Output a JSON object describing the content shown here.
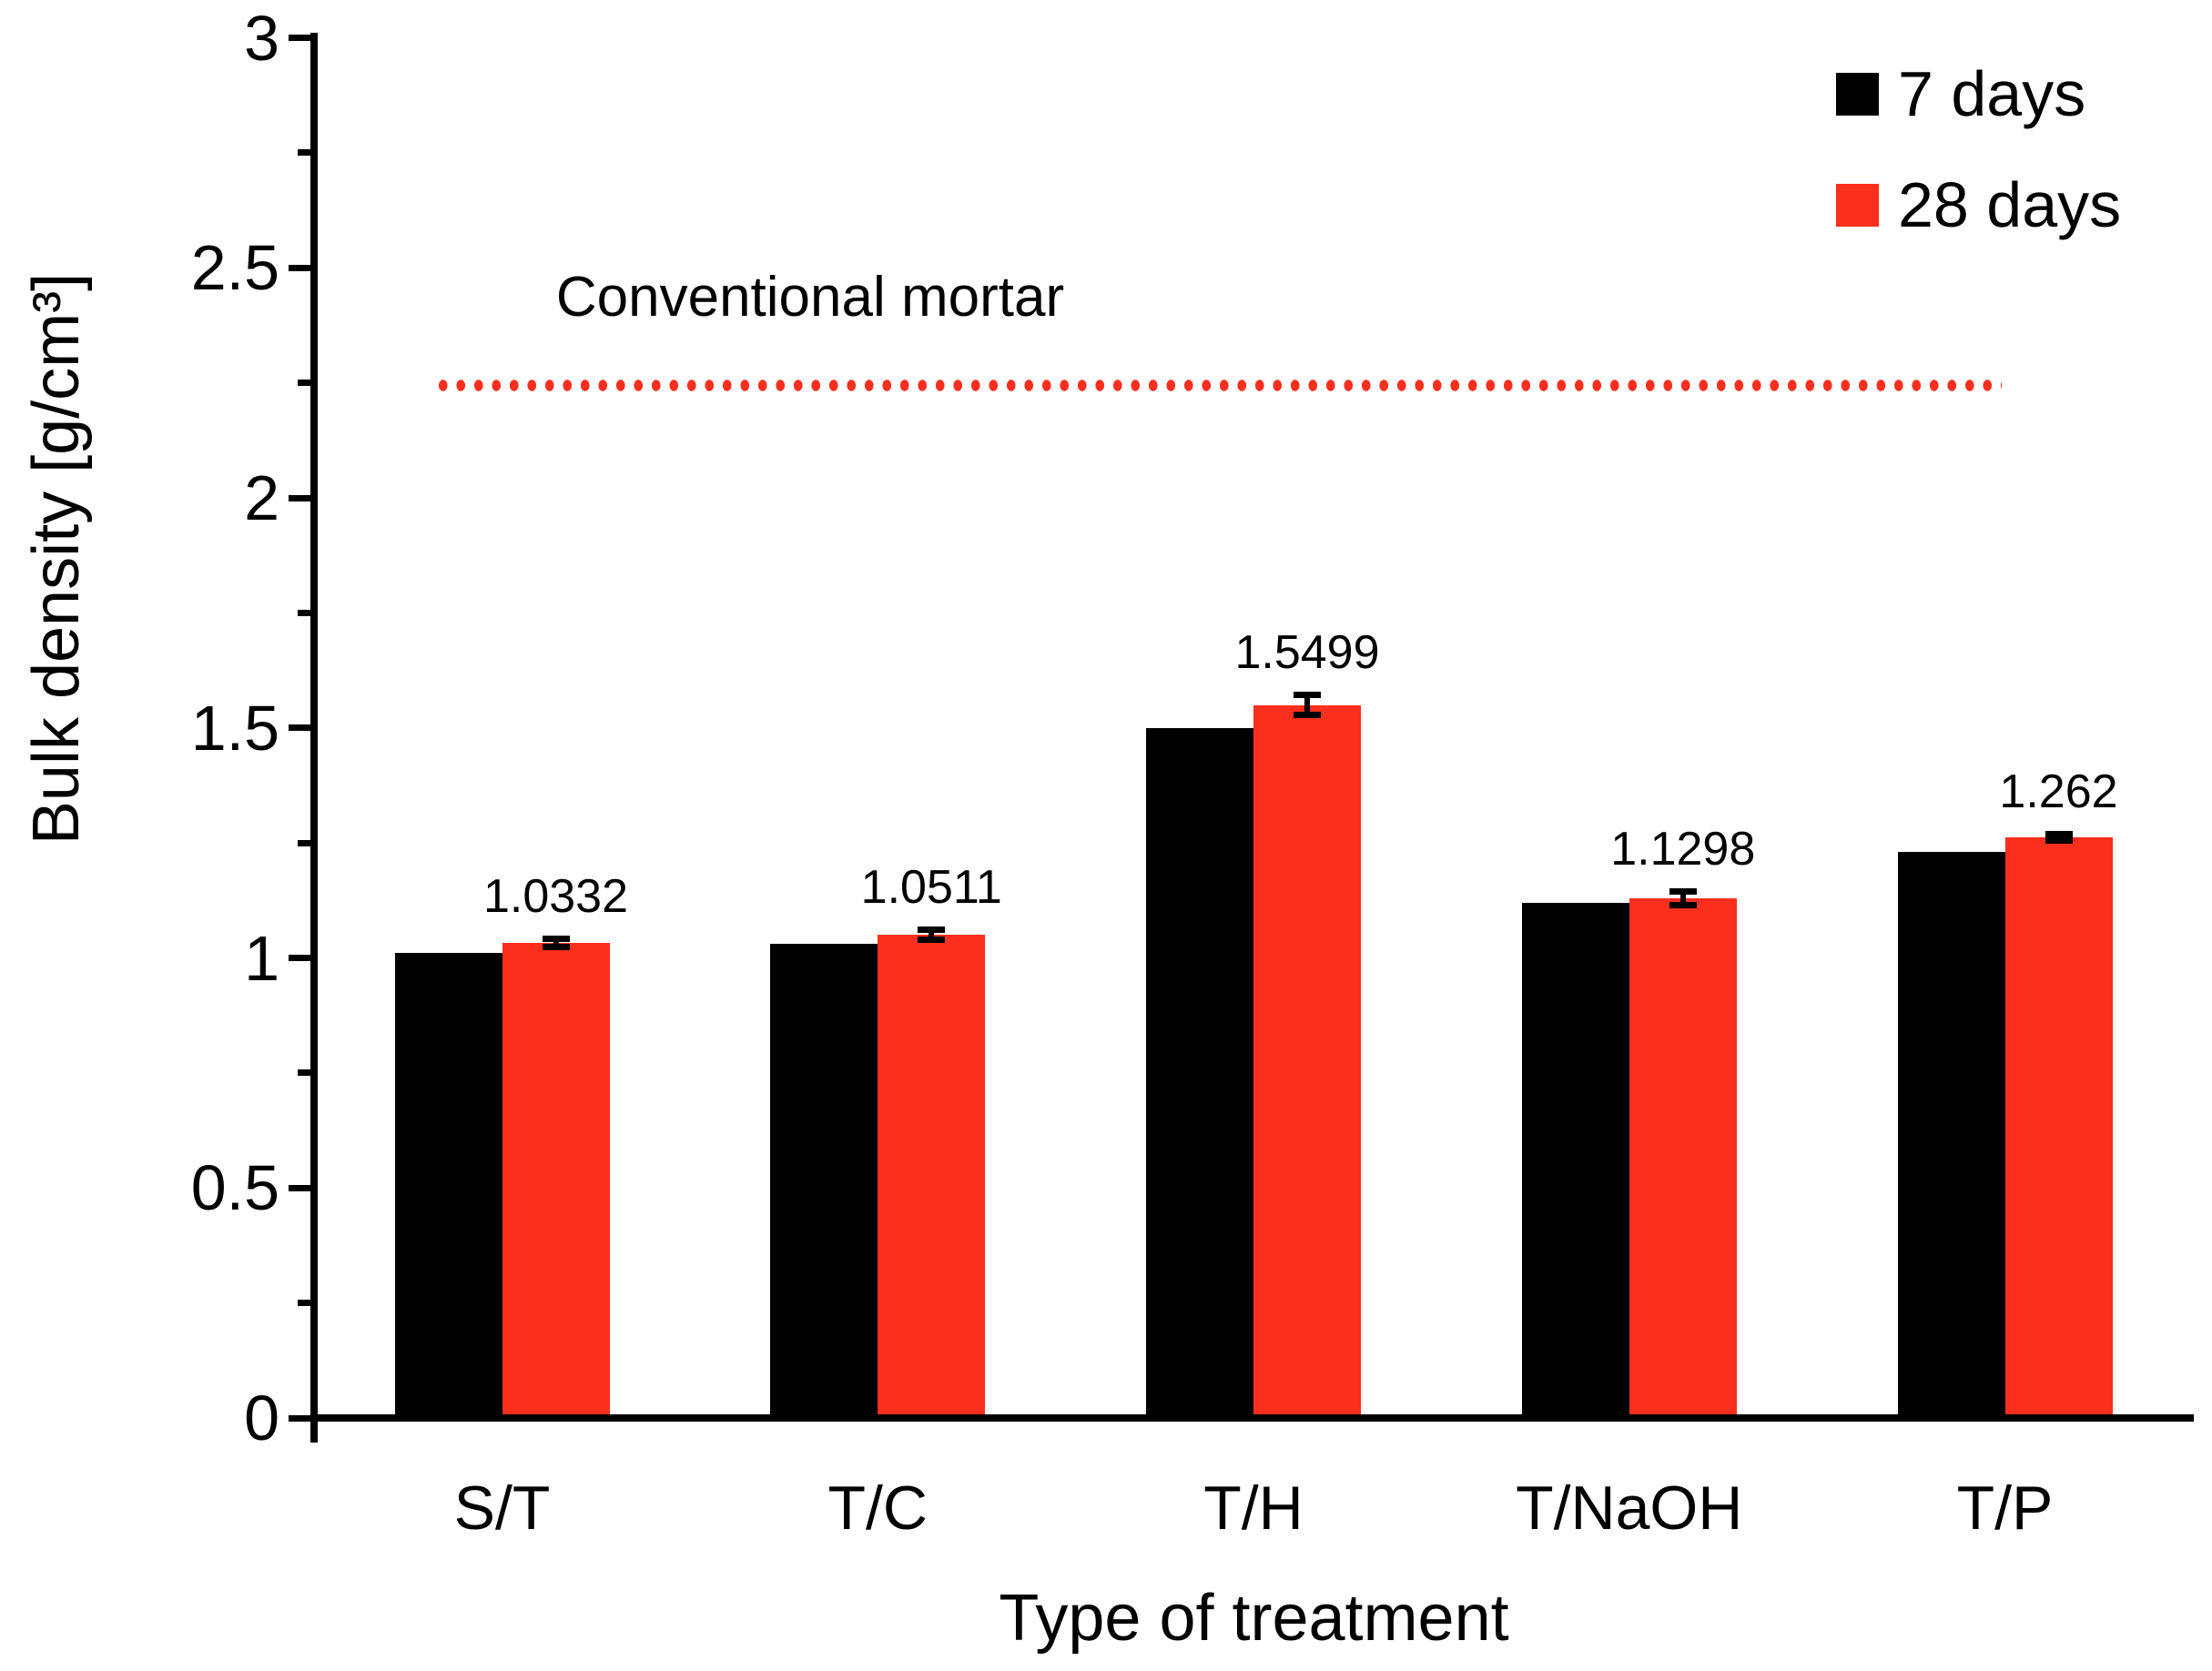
{
  "chart_data": {
    "type": "bar",
    "title": "",
    "categories": [
      "S/T",
      "T/C",
      "T/H",
      "T/NaOH",
      "T/P"
    ],
    "series": [
      {
        "name": "7 days",
        "color": "#000000",
        "values": [
          1.01,
          1.03,
          1.5,
          1.12,
          1.23
        ]
      },
      {
        "name": "28 days",
        "color": "#FA2F1E",
        "values": [
          1.0332,
          1.0511,
          1.5499,
          1.1298,
          1.262
        ],
        "error": [
          0.01,
          0.012,
          0.022,
          0.016,
          0.008
        ],
        "data_labels": [
          "1.0332",
          "1.0511",
          "1.5499",
          "1.1298",
          "1.262"
        ]
      }
    ],
    "xlabel": "Type of treatment",
    "ylabel": "Bulk density [g/cm³]",
    "ylim": [
      0,
      3
    ],
    "y_major_step": 0.5,
    "y_minor_step": 0.25,
    "y_tick_labels": [
      "0",
      "0.5",
      "1",
      "1.5",
      "2",
      "2.5",
      "3"
    ],
    "grid": false,
    "legend_position": "top-right",
    "reference_line": {
      "label": "Conventional mortar",
      "value": 2.25,
      "style": "dotted",
      "color": "#FA2F1E"
    }
  }
}
